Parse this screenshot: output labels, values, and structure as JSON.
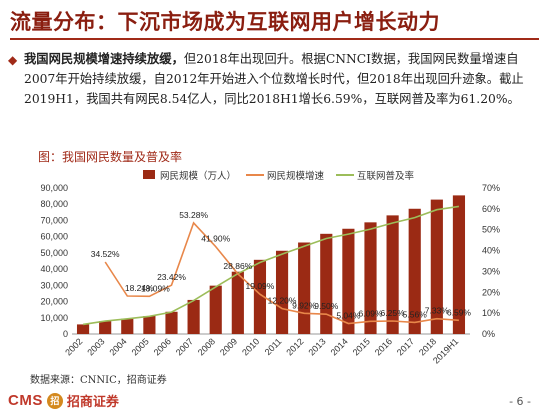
{
  "header": {
    "title": "流量分布：下沉市场成为互联网用户增长动力"
  },
  "bullet": {
    "lead": "我国网民规模增速持续放缓，",
    "text": "但2018年出现回升。根据CNNCI数据，我国网民数量增速自2007年开始持续放缓，自2012年开始进入个位数增长时代，但2018年出现回升迹象。截止2019H1，我国共有网民8.54亿人，同比2018H1增长6.59%，互联网普及率为61.20%。"
  },
  "figure": {
    "caption": "图：我国网民数量及普及率"
  },
  "source": "数据来源：CNNIC，招商证券",
  "footer": {
    "logo_en": "CMS",
    "logo_mark": "招",
    "logo_cn": "招商证券",
    "page": "- 6 -"
  },
  "colors": {
    "bar": "#9b2a14",
    "growth_line": "#e8874a",
    "penetration_line": "#9cbd5a",
    "title": "#8a1e10"
  },
  "chart_data": {
    "type": "bar",
    "categories": [
      "2002",
      "2003",
      "2004",
      "2005",
      "2006",
      "2007",
      "2008",
      "2009",
      "2010",
      "2011",
      "2012",
      "2013",
      "2014",
      "2015",
      "2016",
      "2017",
      "2018",
      "2019H1"
    ],
    "legend": [
      "网民规模（万人）",
      "网民规模增速",
      "互联网普及率"
    ],
    "legend_position": "top",
    "series": [
      {
        "name": "网民规模（万人）",
        "type": "bar",
        "axis": "left",
        "values": [
          5910,
          7950,
          9400,
          11100,
          13700,
          21000,
          29800,
          38400,
          45730,
          51310,
          56400,
          61758,
          64875,
          68826,
          73125,
          77198,
          82851,
          85449
        ]
      },
      {
        "name": "网民规模增速",
        "type": "line",
        "axis": "right",
        "values": [
          null,
          34.52,
          18.24,
          18.09,
          23.42,
          53.28,
          41.9,
          28.86,
          19.09,
          12.2,
          9.92,
          9.5,
          5.04,
          6.09,
          6.25,
          5.56,
          7.33,
          6.59
        ],
        "labels": [
          "",
          "34.52%",
          "18.24%",
          "18.09%",
          "23.42%",
          "53.28%",
          "41.90%",
          "28.86%",
          "19.09%",
          "12.20%",
          "9.92%",
          "9.50%",
          "5.04%",
          "6.09%",
          "6.25%",
          "5.56%",
          "7.33%",
          "6.59%"
        ]
      },
      {
        "name": "互联网普及率",
        "type": "line",
        "axis": "right",
        "values": [
          4.6,
          6.2,
          7.3,
          8.5,
          10.5,
          16.0,
          22.6,
          28.9,
          34.3,
          38.3,
          42.1,
          45.8,
          47.9,
          50.3,
          53.2,
          55.8,
          59.6,
          61.2
        ]
      }
    ],
    "ylim_left": [
      0,
      90000
    ],
    "yticks_left": [
      "0",
      "10,000",
      "20,000",
      "30,000",
      "40,000",
      "50,000",
      "60,000",
      "70,000",
      "80,000",
      "90,000"
    ],
    "ylim_right": [
      0,
      70
    ],
    "yticks_right": [
      "0%",
      "10%",
      "20%",
      "30%",
      "40%",
      "50%",
      "60%",
      "70%"
    ],
    "grid": false
  }
}
